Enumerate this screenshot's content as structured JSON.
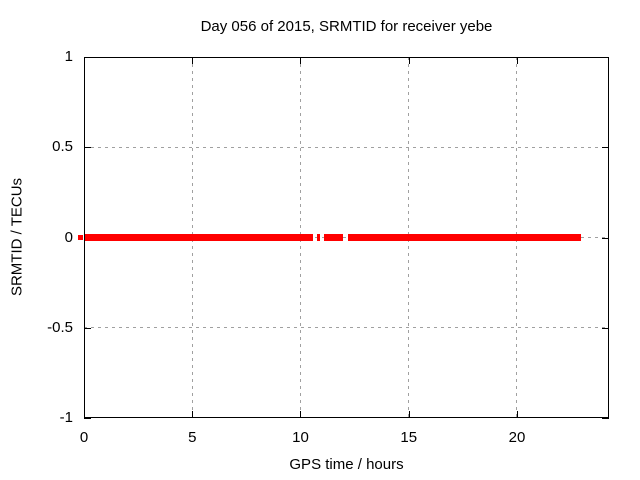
{
  "chart_data": {
    "type": "line",
    "title": "Day 056 of 2015, SRMTID for receiver yebe",
    "xlabel": "GPS time / hours",
    "ylabel": "SRMTID / TECUs",
    "xlim": [
      0,
      24.25
    ],
    "ylim": [
      -1,
      1
    ],
    "grid": true,
    "legend": "none",
    "xticks": [
      {
        "value": 0,
        "label": "0"
      },
      {
        "value": 5,
        "label": "5"
      },
      {
        "value": 10,
        "label": "10"
      },
      {
        "value": 15,
        "label": "15"
      },
      {
        "value": 20,
        "label": "20"
      }
    ],
    "yticks": [
      {
        "value": 1,
        "label": "1"
      },
      {
        "value": 0.5,
        "label": "0.5"
      },
      {
        "value": 0,
        "label": "0"
      },
      {
        "value": -0.5,
        "label": "-0.5"
      },
      {
        "value": -1,
        "label": "-1"
      }
    ],
    "series": [
      {
        "name": "SRMTID",
        "color": "#ff0000",
        "y_value": 0,
        "segments_hours": [
          [
            0.05,
            10.58
          ],
          [
            10.76,
            10.9
          ],
          [
            11.08,
            11.96
          ],
          [
            12.19,
            22.96
          ]
        ],
        "axis_overlap_dash": true
      }
    ],
    "colors": {
      "background": "#ffffff",
      "border": "#000000",
      "grid": "#a0a0a0",
      "text": "#000000",
      "series_red": "#ff0000"
    }
  }
}
